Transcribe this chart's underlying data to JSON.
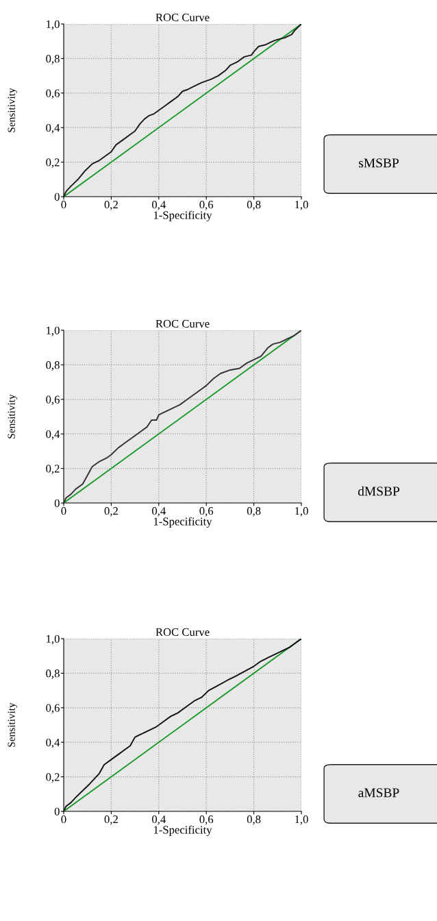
{
  "chart_data": [
    {
      "type": "line",
      "title": "ROC Curve",
      "xlabel": "1-Specificity",
      "ylabel": "Sensitivity",
      "annotations": [
        "sMSBP"
      ],
      "xlim": [
        0,
        1
      ],
      "ylim": [
        0,
        1
      ],
      "xticks": [
        0,
        {
          "value": 0.2,
          "label": "0,2"
        },
        {
          "value": 0.4,
          "label": "0,4"
        },
        {
          "value": 0.6,
          "label": "0,6"
        },
        {
          "value": 0.8,
          "label": "0,8"
        },
        {
          "value": 1.0,
          "label": "1,0"
        }
      ],
      "yticks": [
        0,
        {
          "value": 0.2,
          "label": "0,2"
        },
        {
          "value": 0.4,
          "label": "0,4"
        },
        {
          "value": 0.6,
          "label": "0,6"
        },
        {
          "value": 0.8,
          "label": "0,8"
        },
        {
          "value": 1.0,
          "label": "1,0"
        }
      ],
      "grid": true,
      "series": [
        {
          "color": "#1a1a1a",
          "x": [
            0,
            0.01,
            0.03,
            0.06,
            0.09,
            0.12,
            0.15,
            0.18,
            0.2,
            0.22,
            0.25,
            0.28,
            0.3,
            0.32,
            0.34,
            0.36,
            0.38,
            0.4,
            0.43,
            0.45,
            0.48,
            0.5,
            0.52,
            0.55,
            0.58,
            0.6,
            0.62,
            0.65,
            0.68,
            0.7,
            0.73,
            0.76,
            0.79,
            0.8,
            0.82,
            0.85,
            0.88,
            0.9,
            0.93,
            0.96,
            0.97,
            1
          ],
          "values": [
            0,
            0.03,
            0.06,
            0.1,
            0.15,
            0.19,
            0.21,
            0.24,
            0.26,
            0.3,
            0.33,
            0.36,
            0.38,
            0.42,
            0.45,
            0.47,
            0.48,
            0.5,
            0.53,
            0.55,
            0.58,
            0.61,
            0.62,
            0.64,
            0.66,
            0.67,
            0.68,
            0.7,
            0.73,
            0.76,
            0.78,
            0.81,
            0.82,
            0.84,
            0.87,
            0.88,
            0.9,
            0.91,
            0.92,
            0.94,
            0.96,
            1
          ]
        },
        {
          "color": "#1a9a2a",
          "x": [
            0,
            1
          ],
          "values": [
            0,
            1
          ]
        }
      ]
    },
    {
      "type": "line",
      "title": "ROC Curve",
      "xlabel": "1-Specificity",
      "ylabel": "Sensitivity",
      "annotations": [
        "dMSBP"
      ],
      "xlim": [
        0,
        1
      ],
      "ylim": [
        0,
        1
      ],
      "xticks": [
        0,
        {
          "value": 0.2,
          "label": "0,2"
        },
        {
          "value": 0.4,
          "label": "0,4"
        },
        {
          "value": 0.6,
          "label": "0,6"
        },
        {
          "value": 0.8,
          "label": "0,8"
        },
        {
          "value": 1.0,
          "label": "1,0"
        }
      ],
      "yticks": [
        0,
        {
          "value": 0.2,
          "label": "0,2"
        },
        {
          "value": 0.4,
          "label": "0,4"
        },
        {
          "value": 0.6,
          "label": "0,6"
        },
        {
          "value": 0.8,
          "label": "0,8"
        },
        {
          "value": 1.0,
          "label": "1,0"
        }
      ],
      "grid": true,
      "series": [
        {
          "color": "#333333",
          "x": [
            0,
            0.01,
            0.03,
            0.05,
            0.08,
            0.1,
            0.12,
            0.15,
            0.18,
            0.2,
            0.23,
            0.26,
            0.29,
            0.32,
            0.35,
            0.37,
            0.39,
            0.4,
            0.43,
            0.46,
            0.49,
            0.52,
            0.55,
            0.58,
            0.6,
            0.63,
            0.66,
            0.7,
            0.74,
            0.77,
            0.8,
            0.83,
            0.86,
            0.88,
            0.91,
            0.94,
            0.97,
            1
          ],
          "values": [
            0,
            0.03,
            0.05,
            0.08,
            0.11,
            0.16,
            0.21,
            0.24,
            0.26,
            0.28,
            0.32,
            0.35,
            0.38,
            0.41,
            0.44,
            0.48,
            0.48,
            0.51,
            0.53,
            0.55,
            0.57,
            0.6,
            0.63,
            0.66,
            0.68,
            0.72,
            0.75,
            0.77,
            0.78,
            0.81,
            0.83,
            0.85,
            0.9,
            0.92,
            0.93,
            0.95,
            0.97,
            1
          ]
        },
        {
          "color": "#1a9a2a",
          "x": [
            0,
            1
          ],
          "values": [
            0,
            1
          ]
        }
      ]
    },
    {
      "type": "line",
      "title": "ROC Curve",
      "xlabel": "1-Specificity",
      "ylabel": "Sensitivity",
      "annotations": [
        "aMSBP"
      ],
      "xlim": [
        0,
        1
      ],
      "ylim": [
        0,
        1
      ],
      "xticks": [
        0,
        {
          "value": 0.2,
          "label": "0,2"
        },
        {
          "value": 0.4,
          "label": "0,4"
        },
        {
          "value": 0.6,
          "label": "0,6"
        },
        {
          "value": 0.8,
          "label": "0,8"
        },
        {
          "value": 1.0,
          "label": "1,0"
        }
      ],
      "yticks": [
        0,
        {
          "value": 0.2,
          "label": "0,2"
        },
        {
          "value": 0.4,
          "label": "0,4"
        },
        {
          "value": 0.6,
          "label": "0,6"
        },
        {
          "value": 0.8,
          "label": "0,8"
        },
        {
          "value": 1.0,
          "label": "1,0"
        }
      ],
      "grid": true,
      "series": [
        {
          "color": "#111111",
          "x": [
            0,
            0.01,
            0.03,
            0.05,
            0.08,
            0.11,
            0.13,
            0.15,
            0.17,
            0.2,
            0.23,
            0.26,
            0.28,
            0.3,
            0.33,
            0.36,
            0.39,
            0.42,
            0.45,
            0.48,
            0.52,
            0.55,
            0.58,
            0.61,
            0.65,
            0.69,
            0.72,
            0.76,
            0.8,
            0.83,
            0.86,
            0.89,
            0.92,
            0.95,
            1
          ],
          "values": [
            0,
            0.03,
            0.05,
            0.08,
            0.12,
            0.16,
            0.19,
            0.22,
            0.27,
            0.3,
            0.33,
            0.36,
            0.38,
            0.43,
            0.45,
            0.47,
            0.49,
            0.52,
            0.55,
            0.57,
            0.61,
            0.64,
            0.66,
            0.7,
            0.73,
            0.76,
            0.78,
            0.81,
            0.84,
            0.87,
            0.89,
            0.91,
            0.93,
            0.95,
            1
          ]
        },
        {
          "color": "#1a9a2a",
          "x": [
            0,
            1
          ],
          "values": [
            0,
            1
          ]
        }
      ]
    }
  ]
}
